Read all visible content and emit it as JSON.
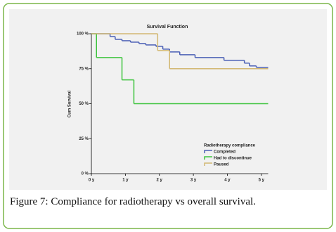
{
  "chart_data": {
    "type": "step",
    "title": "Survival Function",
    "y_label": "Cum Survival",
    "legend_title": "Radiotherapy compliance",
    "legend_position": "lower-center",
    "xlim": [
      0,
      5.2
    ],
    "ylim": [
      0,
      100
    ],
    "xticks": [
      {
        "value": 0,
        "label": "0 y"
      },
      {
        "value": 1,
        "label": "1 y"
      },
      {
        "value": 2,
        "label": "2 y"
      },
      {
        "value": 3,
        "label": "3 y"
      },
      {
        "value": 4,
        "label": "4 y"
      },
      {
        "value": 5,
        "label": "5 y"
      }
    ],
    "yticks": [
      {
        "value": 0,
        "label": "0 %"
      },
      {
        "value": 25,
        "label": "25 %"
      },
      {
        "value": 50,
        "label": "50 %"
      },
      {
        "value": 75,
        "label": "75 %"
      },
      {
        "value": 100,
        "label": "100 %"
      }
    ],
    "series": [
      {
        "name": "Completed",
        "color": "#4a5fb5",
        "x": [
          0,
          0.55,
          0.7,
          0.9,
          1.15,
          1.4,
          1.6,
          1.9,
          2.1,
          2.3,
          2.6,
          3.05,
          3.9,
          4.5,
          4.65,
          4.85
        ],
        "values": [
          100,
          98,
          96,
          95,
          94,
          93,
          92,
          91,
          89,
          87,
          85,
          83,
          81,
          79,
          77,
          76
        ]
      },
      {
        "name": "Had to discontinue",
        "color": "#3dc43d",
        "x": [
          0,
          0.15,
          0.9,
          1.25
        ],
        "values": [
          100,
          83,
          67,
          50
        ]
      },
      {
        "name": "Paused",
        "color": "#d2b872",
        "x": [
          0,
          1.95,
          2.3
        ],
        "values": [
          100,
          88,
          75
        ]
      }
    ]
  },
  "caption": {
    "label": "Figure 7:",
    "text": "Compliance for radiotherapy vs overall survival."
  }
}
